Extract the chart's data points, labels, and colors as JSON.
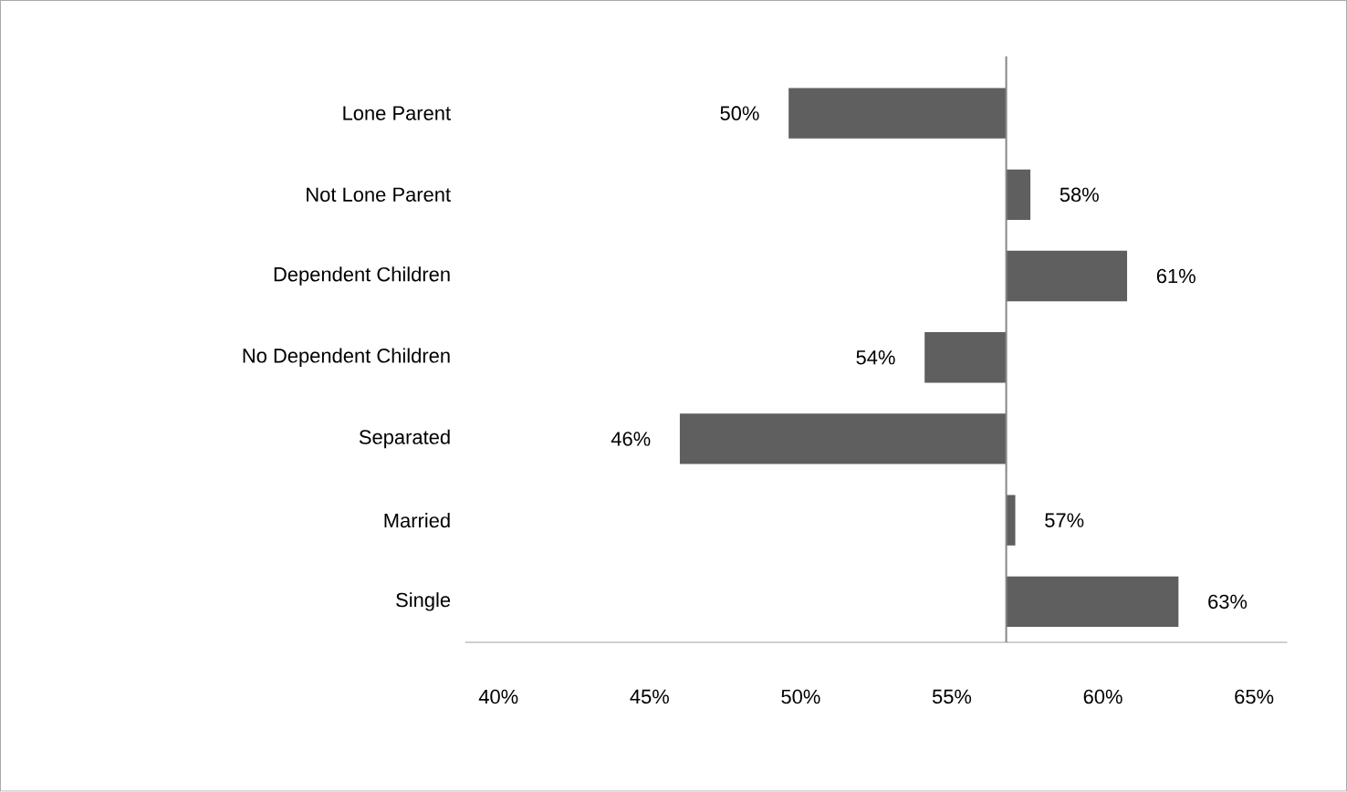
{
  "chart_data": {
    "type": "bar",
    "orientation": "horizontal",
    "categories": [
      "Lone Parent",
      "Not Lone Parent",
      "Dependent Children",
      "No Dependent Children",
      "Separated",
      "Married",
      "Single"
    ],
    "base": [
      56.8,
      56.8,
      56.8,
      56.8,
      56.8,
      56.8,
      56.8
    ],
    "values": [
      -7.2,
      0.8,
      4.0,
      -2.7,
      -10.8,
      0.3,
      5.7
    ],
    "value_labels": [
      "50%",
      "58%",
      "61%",
      "54%",
      "46%",
      "57%",
      "63%"
    ],
    "color": "#5f5f5f",
    "xlim": [
      38.9,
      66.1
    ],
    "xticks": [
      {
        "value": 40,
        "label": "40%"
      },
      {
        "value": 45,
        "label": "45%"
      },
      {
        "value": 50,
        "label": "50%"
      },
      {
        "value": 55,
        "label": "55%"
      },
      {
        "value": 60,
        "label": "60%"
      },
      {
        "value": 65,
        "label": "65%"
      }
    ],
    "ref_lines": [
      {
        "axis": "x",
        "value": 56.8,
        "color": "#868686"
      }
    ],
    "grid": false
  }
}
